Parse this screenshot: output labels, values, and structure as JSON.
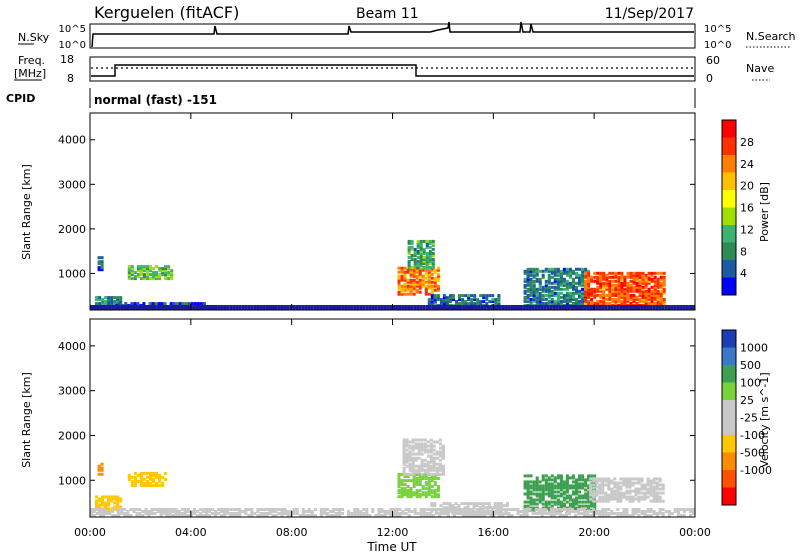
{
  "header": {
    "radar": "Kerguelen (fitACF)",
    "beam": "Beam 11",
    "date": "11/Sep/2017"
  },
  "top_panels": {
    "nsky_label": "N.Sky",
    "nsearch_label": "N.Search",
    "nsky_ticks": [
      "10^5",
      "10^0"
    ],
    "nsearch_ticks": [
      "10^5",
      "10^0"
    ],
    "freq_label": "Freq.",
    "freq_unit": "[MHz]",
    "freq_ticks": [
      "18",
      "8"
    ],
    "nave_label": "Nave",
    "nave_ticks": [
      "60",
      "0"
    ],
    "cpid_label": "CPID",
    "cpid_text": "normal (fast) -151"
  },
  "chart_data": [
    {
      "type": "heatmap",
      "ylabel": "Slant Range [km]",
      "colorbar_label": "Power [dB]",
      "xlim": [
        "00:00",
        "24:00"
      ],
      "ylim": [
        180,
        4600
      ],
      "yticks": [
        "1000",
        "2000",
        "3000",
        "4000"
      ],
      "colorbar_ticks": [
        "28",
        "24",
        "20",
        "16",
        "12",
        "8",
        "4"
      ],
      "colorbar_colors": [
        "#ff0000",
        "#ff3000",
        "#ff7f00",
        "#ffc000",
        "#ffff00",
        "#a0e000",
        "#3cb371",
        "#2e8b57",
        "#1e5aa0",
        "#0000ff"
      ],
      "colorbar_range": [
        0,
        32
      ],
      "regions": [
        {
          "t_start": 0.2,
          "t_end": 1.2,
          "r_min": 200,
          "r_max": 450,
          "level": 8
        },
        {
          "t_start": 0.3,
          "t_end": 0.5,
          "r_min": 1050,
          "r_max": 1350,
          "level": 6
        },
        {
          "t_start": 1.5,
          "t_end": 3.2,
          "r_min": 850,
          "r_max": 1150,
          "level": 12
        },
        {
          "t_start": 1.0,
          "t_end": 4.5,
          "r_min": 200,
          "r_max": 330,
          "level": 4
        },
        {
          "t_start": 12.2,
          "t_end": 13.8,
          "r_min": 500,
          "r_max": 1100,
          "level": 24
        },
        {
          "t_start": 12.6,
          "t_end": 13.6,
          "r_min": 1100,
          "r_max": 1700,
          "level": 10
        },
        {
          "t_start": 13.4,
          "t_end": 16.2,
          "r_min": 200,
          "r_max": 500,
          "level": 6
        },
        {
          "t_start": 17.2,
          "t_end": 19.8,
          "r_min": 250,
          "r_max": 1100,
          "level": 7
        },
        {
          "t_start": 19.6,
          "t_end": 22.8,
          "r_min": 250,
          "r_max": 1000,
          "level": 26
        },
        {
          "t_start": 0.0,
          "t_end": 24.0,
          "r_min": 180,
          "r_max": 240,
          "level": 2
        }
      ]
    },
    {
      "type": "heatmap",
      "ylabel": "Slant Range [km]",
      "xlabel": "Time UT",
      "colorbar_label": "Velocity [m s^-1]",
      "xlim": [
        "00:00",
        "24:00"
      ],
      "ylim": [
        180,
        4600
      ],
      "xticks": [
        "00:00",
        "04:00",
        "08:00",
        "12:00",
        "16:00",
        "20:00",
        "00:00"
      ],
      "yticks": [
        "1000",
        "2000",
        "3000",
        "4000"
      ],
      "colorbar_ticks": [
        "1000",
        "500",
        "100",
        "25",
        "-25",
        "-100",
        "-500",
        "-1000"
      ],
      "colorbar_colors": [
        "#1e3cb4",
        "#3c78c8",
        "#3ca050",
        "#78d23c",
        "#c8c8c8",
        "#c8c8c8",
        "#ffc800",
        "#ff8c00",
        "#ff5000",
        "#ff0000"
      ],
      "regions": [
        {
          "t_start": 0.2,
          "t_end": 1.2,
          "r_min": 280,
          "r_max": 600,
          "color": "#ffc800"
        },
        {
          "t_start": 0.3,
          "t_end": 0.5,
          "r_min": 1100,
          "r_max": 1350,
          "color": "#ff8c00"
        },
        {
          "t_start": 1.5,
          "t_end": 3.0,
          "r_min": 850,
          "r_max": 1150,
          "color": "#ffc800"
        },
        {
          "t_start": 12.2,
          "t_end": 13.8,
          "r_min": 600,
          "r_max": 1100,
          "color": "#78d23c"
        },
        {
          "t_start": 12.4,
          "t_end": 14.0,
          "r_min": 1100,
          "r_max": 1900,
          "color": "#c8c8c8"
        },
        {
          "t_start": 13.5,
          "t_end": 16.5,
          "r_min": 220,
          "r_max": 480,
          "color": "#c8c8c8"
        },
        {
          "t_start": 17.2,
          "t_end": 20.0,
          "r_min": 300,
          "r_max": 1100,
          "color": "#3ca050"
        },
        {
          "t_start": 19.8,
          "t_end": 22.8,
          "r_min": 500,
          "r_max": 1000,
          "color": "#c8c8c8"
        },
        {
          "t_start": 0.0,
          "t_end": 24.0,
          "r_min": 180,
          "r_max": 320,
          "color": "#c8c8c8"
        }
      ]
    }
  ]
}
